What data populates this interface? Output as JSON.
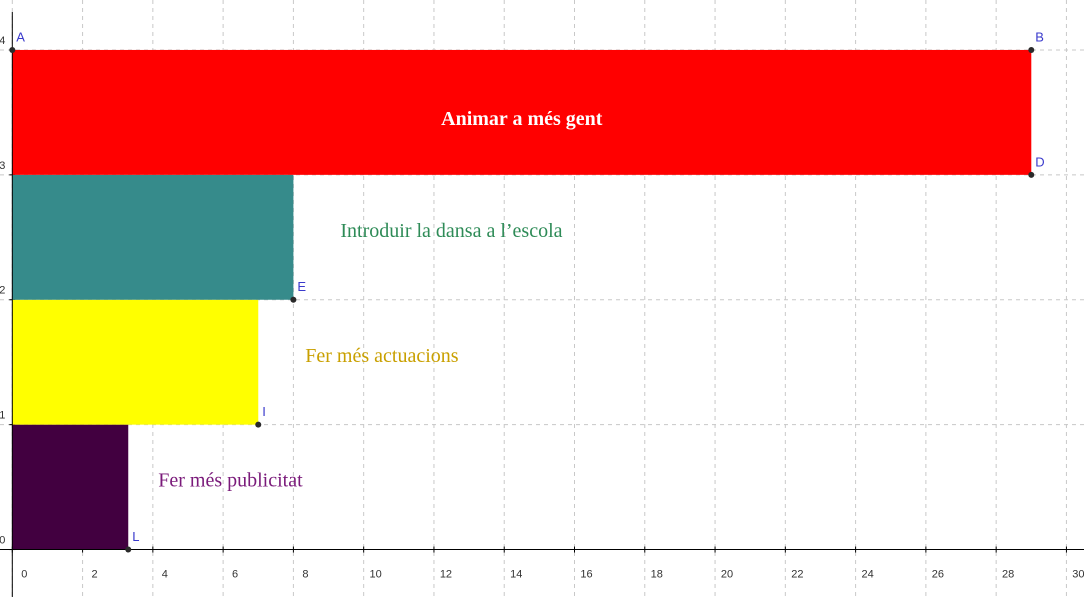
{
  "chart_data": {
    "type": "bar",
    "orientation": "horizontal",
    "categories": [
      "Fer més publicitat",
      "Fer més actuacions",
      "Introduir la dansa a l’escola",
      "Animar a més gent"
    ],
    "values": [
      3.3,
      7,
      8,
      29
    ],
    "colors": [
      "#420040",
      "#ffff00",
      "#368b8b",
      "#ff0000"
    ],
    "label_colors": [
      "#7a1a7a",
      "#c9a000",
      "#2e8b57",
      "#ffffff"
    ],
    "xlim": [
      -0.35,
      30.5
    ],
    "xticks": [
      0,
      2,
      4,
      6,
      8,
      10,
      12,
      14,
      16,
      18,
      20,
      22,
      24,
      26,
      28,
      30
    ],
    "ylim": [
      -0.38,
      4.4
    ],
    "yticks": [
      0,
      1,
      2,
      3,
      4
    ],
    "grid": true,
    "points": [
      {
        "label": "A",
        "x": 0,
        "y": 4
      },
      {
        "label": "B",
        "x": 29,
        "y": 4
      },
      {
        "label": "D",
        "x": 29,
        "y": 3
      },
      {
        "label": "E",
        "x": 8,
        "y": 2
      },
      {
        "label": "I",
        "x": 7,
        "y": 1
      },
      {
        "label": "L",
        "x": 3.3,
        "y": 0
      }
    ]
  }
}
